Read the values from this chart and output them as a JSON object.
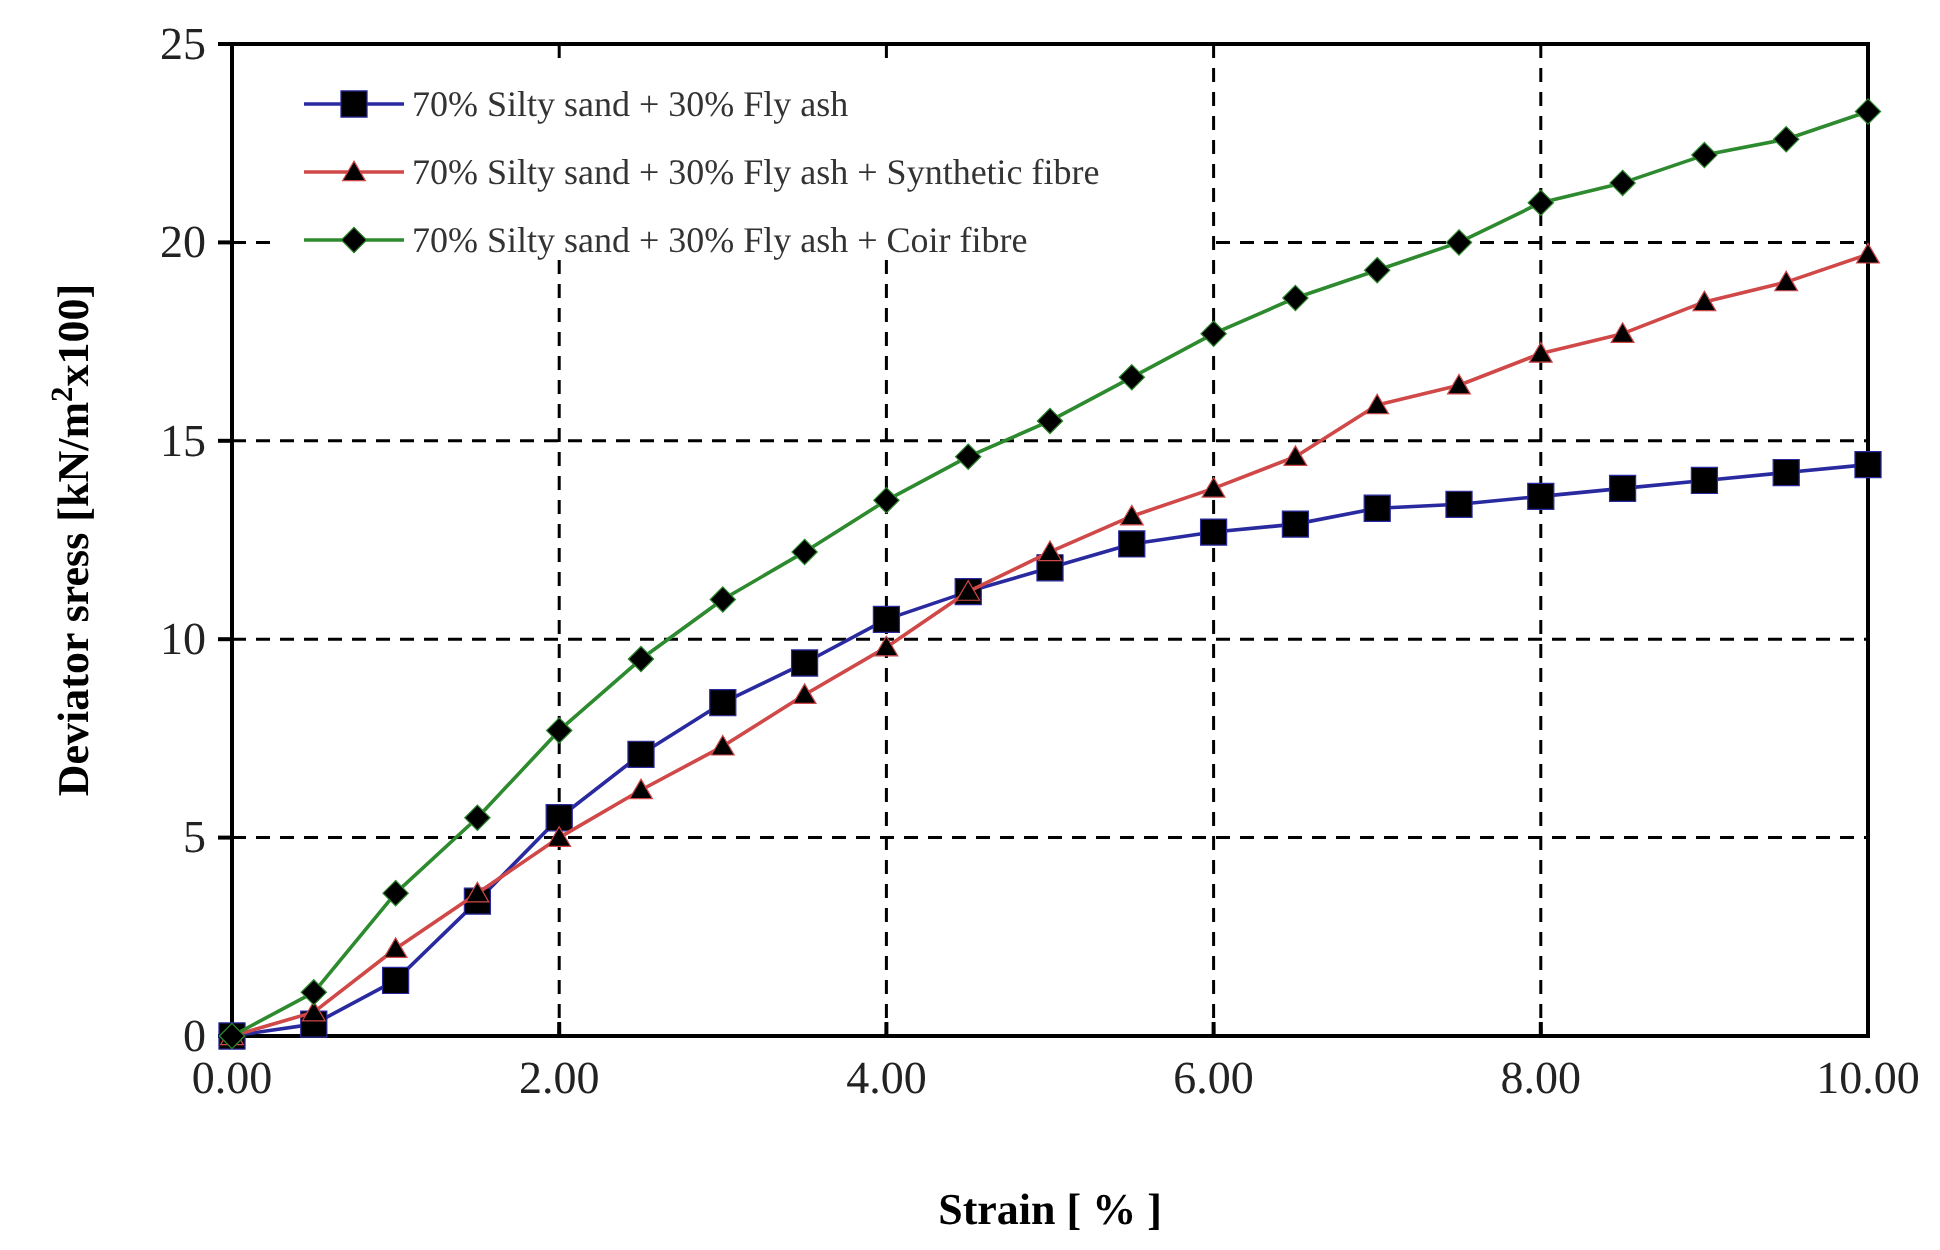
{
  "chart_data": {
    "type": "line",
    "xlabel": "Strain [ % ]",
    "ylabel": "Deviator sress [kN/m$^{2}$x100]",
    "x": [
      0,
      0.5,
      1,
      1.5,
      2,
      2.5,
      3,
      3.5,
      4,
      4.5,
      5,
      5.5,
      6,
      6.5,
      7,
      7.5,
      8,
      8.5,
      9,
      9.5,
      10
    ],
    "series": [
      {
        "name": "70% Silty sand + 30% Fly ash",
        "color": "#2a2aa0",
        "marker": "square",
        "values": [
          0,
          0.3,
          1.4,
          3.4,
          5.5,
          7.1,
          8.4,
          9.4,
          10.5,
          11.2,
          11.8,
          12.4,
          12.7,
          12.9,
          13.3,
          13.4,
          13.6,
          13.8,
          14.0,
          14.2,
          14.4
        ]
      },
      {
        "name": "70% Silty sand + 30% Fly ash + Synthetic fibre",
        "color": "#d04848",
        "marker": "triangle",
        "values": [
          0,
          0.6,
          2.2,
          3.6,
          5.0,
          6.2,
          7.3,
          8.6,
          9.8,
          11.2,
          12.2,
          13.1,
          13.8,
          14.6,
          15.9,
          16.4,
          17.2,
          17.7,
          18.5,
          19.0,
          19.7
        ]
      },
      {
        "name": "70% Silty sand + 30% Fly ash + Coir fibre",
        "color": "#2e8a2e",
        "marker": "diamond",
        "values": [
          0,
          1.1,
          3.6,
          5.5,
          7.7,
          9.5,
          11.0,
          12.2,
          13.5,
          14.6,
          15.5,
          16.6,
          17.7,
          18.6,
          19.3,
          20.0,
          21.0,
          21.5,
          22.2,
          22.6,
          23.3
        ]
      }
    ],
    "xlim": [
      0,
      10
    ],
    "xticks": [
      {
        "value": 0,
        "label": "0.00"
      },
      {
        "value": 2,
        "label": "2.00"
      },
      {
        "value": 4,
        "label": "4.00"
      },
      {
        "value": 6,
        "label": "6.00"
      },
      {
        "value": 8,
        "label": "8.00"
      },
      {
        "value": 10,
        "label": "10.00"
      }
    ],
    "ylim": [
      0,
      25
    ],
    "yticks": [
      0,
      5,
      10,
      15,
      20,
      25
    ],
    "grid": true,
    "legend": "top left",
    "line_style": "solid"
  }
}
